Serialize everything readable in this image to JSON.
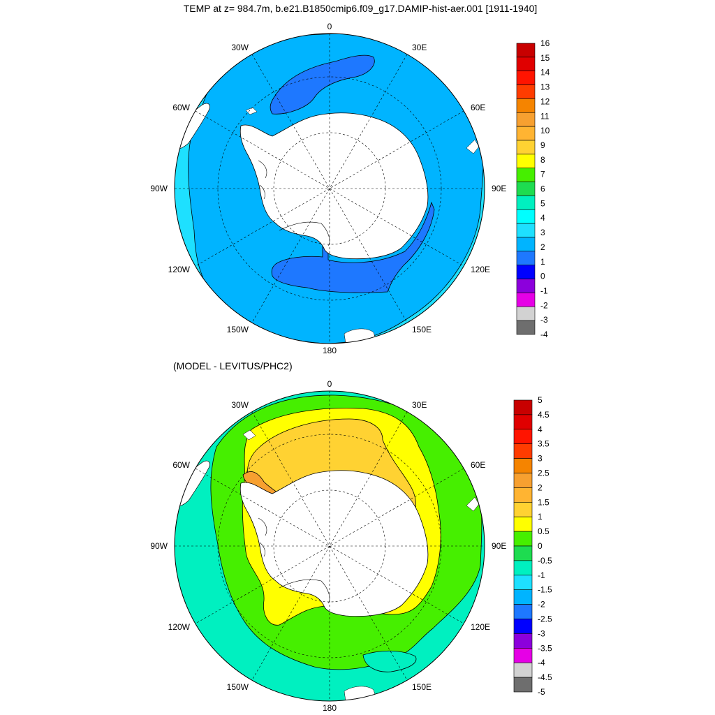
{
  "panels": [
    {
      "title": "TEMP at z= 984.7m, b.e21.B1850cmip6.f09_g17.DAMIP-hist-aer.001 [1911-1940]",
      "colorbar": {
        "labels": [
          "16",
          "15",
          "14",
          "13",
          "12",
          "11",
          "10",
          "9",
          "8",
          "7",
          "6",
          "5",
          "4",
          "3",
          "2",
          "1",
          "0",
          "-1",
          "-2",
          "-3",
          "-4"
        ],
        "colors": [
          "#c80000",
          "#e00000",
          "#ff1400",
          "#ff3c00",
          "#f58400",
          "#f7a030",
          "#ffb432",
          "#ffd232",
          "#ffff00",
          "#46ef00",
          "#1edc50",
          "#00f0c0",
          "#00ffff",
          "#1ee0ff",
          "#00b4ff",
          "#1e78ff",
          "#0000ff",
          "#8c00dc",
          "#e600e6",
          "#d2d2d2",
          "#6e6e6e"
        ]
      },
      "field": {
        "ocean_color": "#00b4ff",
        "rim_color": "#1ee0ff",
        "patch_color": "#1e78ff"
      }
    },
    {
      "title": "(MODEL - LEVITUS/PHC2)",
      "colorbar": {
        "labels": [
          "5",
          "4.5",
          "4",
          "3.5",
          "3",
          "2.5",
          "2",
          "1.5",
          "1",
          "0.5",
          "0",
          "-0.5",
          "-1",
          "-1.5",
          "-2",
          "-2.5",
          "-3",
          "-3.5",
          "-4",
          "-4.5",
          "-5"
        ],
        "colors": [
          "#c80000",
          "#e00000",
          "#ff1400",
          "#ff3c00",
          "#f58400",
          "#f7a030",
          "#ffb432",
          "#ffd232",
          "#ffff00",
          "#46ef00",
          "#1edc50",
          "#00f0c0",
          "#1ee0ff",
          "#00b4ff",
          "#1e78ff",
          "#0000ff",
          "#8c00dc",
          "#e600e6",
          "#d2d2d2",
          "#6e6e6e"
        ]
      },
      "field": {
        "outer_color": "#00f0c0",
        "middle_color": "#46ef00",
        "ring_color": "#ffff00",
        "inner_color": "#ffd232",
        "hot_color": "#f7a030"
      }
    }
  ],
  "longitude_labels": [
    "0",
    "30E",
    "60E",
    "90E",
    "120E",
    "150E",
    "180",
    "150W",
    "120W",
    "90W",
    "60W",
    "30W"
  ],
  "land_color": "#ffffff"
}
